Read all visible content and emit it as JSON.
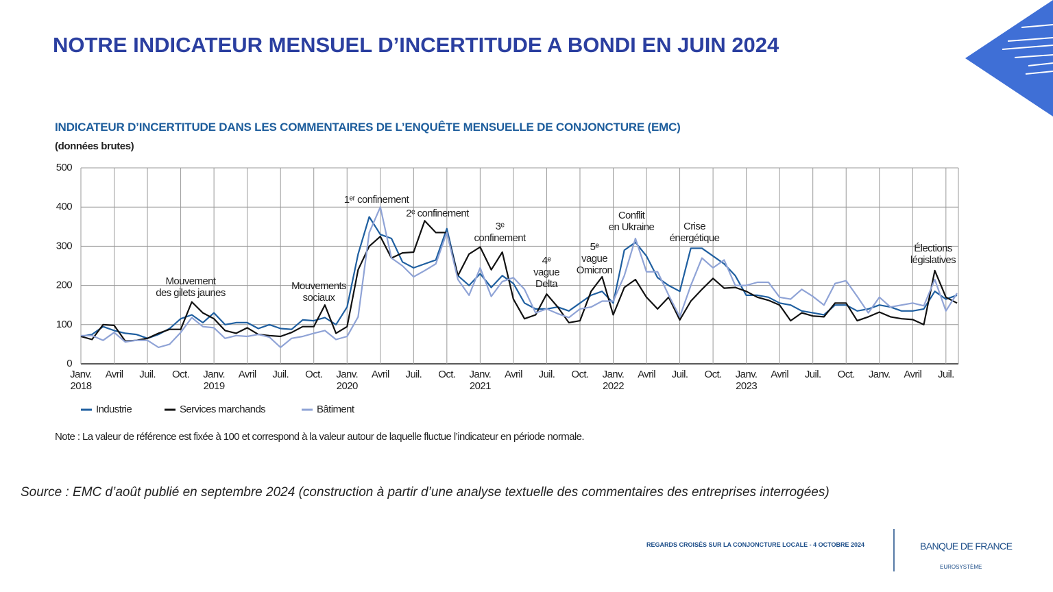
{
  "slide": {
    "title": "NOTRE INDICATEUR MENSUEL D’INCERTITUDE A BONDI EN JUIN 2024",
    "source": "Source : EMC d’août publié en septembre 2024 (construction à partir d’une analyse textuelle des commentaires des entreprises interrogées)",
    "footer": "REGARDS CROISÉS SUR LA CONJONCTURE LOCALE - 4 OCTOBRE 2024",
    "logo": "BANQUE DE FRANCE",
    "logo_sub": "EUROSYSTÈME"
  },
  "chart_data": {
    "type": "line",
    "title": "INDICATEUR D’INCERTITUDE DANS LES COMMENTAIRES DE L’ENQUÊTE MENSUELLE DE CONJONCTURE (EMC)",
    "subtitle": "(données brutes)",
    "note": "Note : La valeur de référence est fixée à 100 et correspond à la valeur autour de laquelle fluctue l’indicateur en période normale.",
    "categories": [
      "Janv.\n2018",
      null,
      null,
      "Avril",
      null,
      null,
      "Juil.",
      null,
      null,
      "Oct.",
      null,
      null,
      "Janv.\n2019",
      null,
      null,
      "Avril",
      null,
      null,
      "Juil.",
      null,
      null,
      "Oct.",
      null,
      null,
      "Janv.\n2020",
      null,
      null,
      "Avril",
      null,
      null,
      "Juil.",
      null,
      null,
      "Oct.",
      null,
      null,
      "Janv.\n2021",
      null,
      null,
      "Avril",
      null,
      null,
      "Juil.",
      null,
      null,
      "Oct.",
      null,
      null,
      "Janv.\n2022",
      null,
      null,
      "Avril",
      null,
      null,
      "Juil.",
      null,
      null,
      "Oct.",
      null,
      null,
      "Janv.\n2023",
      null,
      null,
      "Avril",
      null,
      null,
      "Juil.",
      null,
      null,
      "Oct.",
      null,
      null,
      "Janv.",
      null,
      null,
      "Avril",
      null,
      null,
      "Juil.",
      null
    ],
    "series": [
      {
        "name": "Industrie",
        "color": "#1f5fa0",
        "values": [
          70,
          75,
          95,
          85,
          78,
          75,
          65,
          75,
          90,
          115,
          125,
          105,
          130,
          100,
          105,
          105,
          90,
          100,
          90,
          88,
          112,
          110,
          118,
          100,
          145,
          280,
          375,
          330,
          320,
          260,
          245,
          255,
          265,
          345,
          225,
          200,
          230,
          195,
          225,
          205,
          155,
          140,
          140,
          145,
          135,
          155,
          175,
          185,
          155,
          290,
          310,
          275,
          220,
          200,
          185,
          295,
          295,
          275,
          255,
          225,
          175,
          175,
          170,
          155,
          150,
          135,
          130,
          125,
          150,
          150,
          135,
          140,
          150,
          145,
          135,
          135,
          140,
          185,
          165,
          175
        ]
      },
      {
        "name": "Services marchands",
        "color": "#111111",
        "values": [
          70,
          62,
          100,
          98,
          58,
          60,
          65,
          78,
          88,
          88,
          158,
          130,
          115,
          85,
          78,
          92,
          75,
          72,
          70,
          80,
          95,
          95,
          150,
          78,
          95,
          240,
          300,
          325,
          270,
          283,
          285,
          365,
          335,
          335,
          225,
          280,
          298,
          240,
          285,
          165,
          115,
          125,
          178,
          145,
          105,
          110,
          185,
          222,
          125,
          195,
          215,
          170,
          140,
          170,
          112,
          160,
          190,
          218,
          193,
          195,
          185,
          170,
          162,
          150,
          110,
          130,
          122,
          120,
          155,
          155,
          110,
          120,
          132,
          120,
          115,
          113,
          100,
          238,
          170,
          155
        ]
      },
      {
        "name": "Bâtiment",
        "color": "#8fa3d6",
        "values": [
          72,
          72,
          60,
          80,
          56,
          60,
          60,
          42,
          50,
          80,
          118,
          95,
          92,
          65,
          72,
          70,
          75,
          68,
          42,
          65,
          70,
          78,
          85,
          62,
          70,
          120,
          335,
          400,
          270,
          250,
          222,
          238,
          255,
          335,
          215,
          175,
          245,
          172,
          210,
          220,
          190,
          130,
          140,
          128,
          118,
          140,
          145,
          160,
          160,
          225,
          320,
          235,
          235,
          175,
          120,
          200,
          270,
          245,
          265,
          200,
          200,
          208,
          208,
          170,
          165,
          190,
          172,
          150,
          205,
          212,
          172,
          130,
          170,
          145,
          150,
          155,
          148,
          215,
          135,
          180
        ]
      }
    ],
    "ylim": [
      0,
      500
    ],
    "yticks": [
      0,
      100,
      200,
      300,
      400,
      500
    ],
    "grid": true,
    "legend": "bottom-left",
    "annotations": [
      "Mouvement\ndes gilets jaunes",
      "Mouvements\nsociaux",
      "1ᵉʳ confinement",
      "2ᵉ confinement",
      "3ᵉ\nconfinement",
      "4ᵉ\nvague\nDelta",
      "5ᵉ\nvague\nOmicron",
      "Conflit\nen Ukraine",
      "Crise\nénergétique",
      "Élections\nlégislatives"
    ]
  }
}
